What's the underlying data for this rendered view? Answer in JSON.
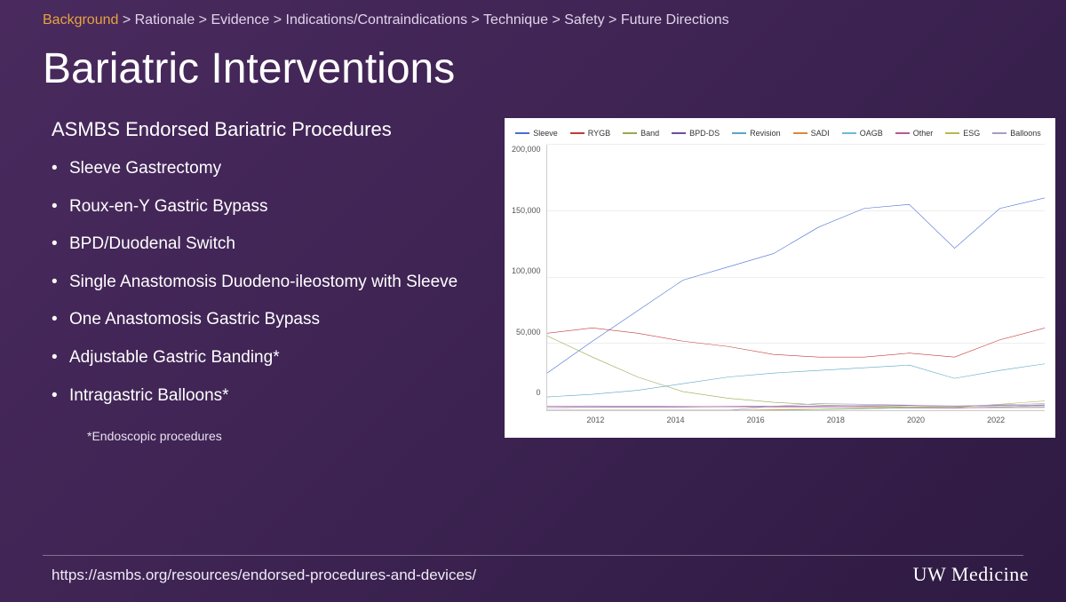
{
  "breadcrumb": {
    "items": [
      "Background",
      "Rationale",
      "Evidence",
      "Indications/Contraindications",
      "Technique",
      "Safety",
      "Future Directions"
    ],
    "active_index": 0,
    "separator": " > "
  },
  "title": "Bariatric Interventions",
  "subtitle": "ASMBS Endorsed Bariatric Procedures",
  "bullets": [
    "Sleeve Gastrectomy",
    "Roux-en-Y Gastric Bypass",
    "BPD/Duodenal Switch",
    "Single Anastomosis Duodeno-ileostomy with Sleeve",
    "One Anastomosis Gastric Bypass",
    "Adjustable Gastric Banding*",
    "Intragastric Balloons*"
  ],
  "footnote": "*Endoscopic procedures",
  "source_url": "https://asmbs.org/resources/endorsed-procedures-and-devices/",
  "logo_text": "UW Medicine",
  "chart": {
    "type": "line",
    "background_color": "#ffffff",
    "grid_color": "#eeeeee",
    "axis_color": "#cccccc",
    "label_color": "#555555",
    "label_fontsize": 9,
    "ylim": [
      0,
      200000
    ],
    "ytick_step": 50000,
    "yticks": [
      "0",
      "50,000",
      "100,000",
      "150,000",
      "200,000"
    ],
    "x_categories": [
      "2011",
      "2012",
      "2013",
      "2014",
      "2015",
      "2016",
      "2017",
      "2018",
      "2019",
      "2020",
      "2021",
      "2022"
    ],
    "x_labels_shown": [
      "2012",
      "2014",
      "2016",
      "2018",
      "2020",
      "2022"
    ],
    "series": [
      {
        "name": "Sleeve",
        "color": "#4a6fd4",
        "values": [
          28000,
          52000,
          75000,
          98000,
          108000,
          118000,
          138000,
          152000,
          155000,
          122000,
          152000,
          160000
        ]
      },
      {
        "name": "RYGB",
        "color": "#c23a3a",
        "values": [
          58000,
          62000,
          58000,
          52000,
          48000,
          42000,
          40000,
          40000,
          43000,
          40000,
          53000,
          62000
        ]
      },
      {
        "name": "Band",
        "color": "#9aa84f",
        "values": [
          56000,
          40000,
          25000,
          14000,
          9000,
          6000,
          4000,
          3000,
          2500,
          2000,
          2000,
          2000
        ]
      },
      {
        "name": "BPD-DS",
        "color": "#6b4fa0",
        "values": [
          2000,
          2200,
          2400,
          2500,
          2800,
          3000,
          3200,
          3400,
          3500,
          3000,
          3500,
          4000
        ]
      },
      {
        "name": "Revision",
        "color": "#5aa7c4",
        "values": [
          10000,
          12000,
          15000,
          20000,
          25000,
          28000,
          30000,
          32000,
          34000,
          24000,
          30000,
          35000
        ]
      },
      {
        "name": "SADI",
        "color": "#d68a3a",
        "values": [
          0,
          0,
          0,
          0,
          0,
          500,
          800,
          1200,
          1800,
          1500,
          2500,
          3500
        ]
      },
      {
        "name": "OAGB",
        "color": "#6fb8d6",
        "values": [
          0,
          0,
          0,
          0,
          0,
          0,
          500,
          1000,
          1800,
          1600,
          2500,
          3500
        ]
      },
      {
        "name": "Other",
        "color": "#b85a8f",
        "values": [
          3000,
          3200,
          3000,
          2800,
          2600,
          2400,
          2200,
          2100,
          2000,
          1900,
          2000,
          2200
        ]
      },
      {
        "name": "ESG",
        "color": "#b8b84f",
        "values": [
          0,
          0,
          0,
          0,
          0,
          0,
          800,
          1500,
          2500,
          2200,
          4500,
          7000
        ]
      },
      {
        "name": "Balloons",
        "color": "#a89bc4",
        "values": [
          0,
          0,
          0,
          0,
          0,
          3000,
          5000,
          4500,
          3800,
          3200,
          4000,
          5000
        ]
      }
    ]
  }
}
